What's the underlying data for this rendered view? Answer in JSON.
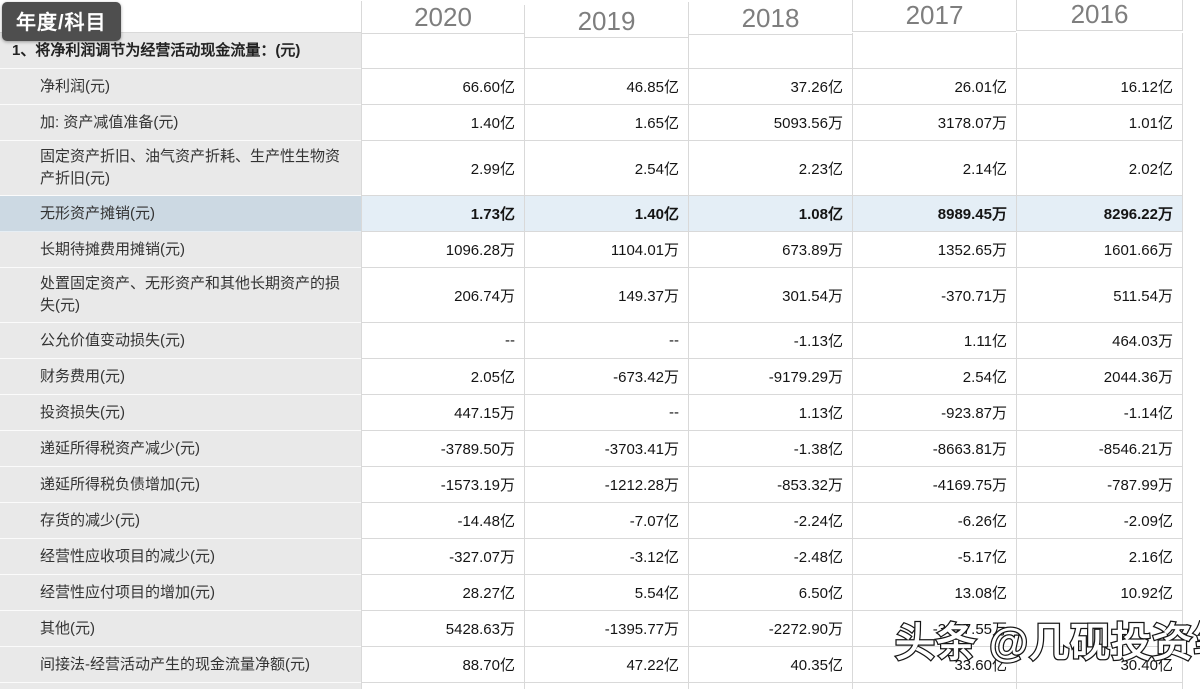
{
  "tooltip": {
    "label": "年度/科目"
  },
  "watermark": {
    "text": "头条 @几砚投资笔记"
  },
  "colors": {
    "label_column_bg": "#e9e9e9",
    "highlight_row_label_bg": "#ccd9e3",
    "highlight_row_value_bg": "#e4eef6",
    "grid_line": "#d9d9d9",
    "year_header_text": "#7e7e7e",
    "tooltip_bg": "#4e4e4e"
  },
  "table": {
    "year_columns": [
      "2020",
      "2019",
      "2018",
      "2017",
      "2016"
    ],
    "rows": [
      {
        "label": "1、将净利润调节为经营活动现金流量：(元)",
        "type": "section",
        "values": [
          "",
          "",
          "",
          "",
          ""
        ]
      },
      {
        "label": "净利润(元)",
        "type": "item",
        "values": [
          "66.60亿",
          "46.85亿",
          "37.26亿",
          "26.01亿",
          "16.12亿"
        ]
      },
      {
        "label": "加: 资产减值准备(元)",
        "type": "item",
        "values": [
          "1.40亿",
          "1.65亿",
          "5093.56万",
          "3178.07万",
          "1.01亿"
        ]
      },
      {
        "label": "固定资产折旧、油气资产折耗、生产性生物资产折旧(元)",
        "type": "item",
        "two_line": true,
        "values": [
          "2.99亿",
          "2.54亿",
          "2.23亿",
          "2.14亿",
          "2.02亿"
        ]
      },
      {
        "label": "无形资产摊销(元)",
        "type": "item",
        "highlighted": true,
        "values": [
          "1.73亿",
          "1.40亿",
          "1.08亿",
          "8989.45万",
          "8296.22万"
        ]
      },
      {
        "label": "长期待摊费用摊销(元)",
        "type": "item",
        "values": [
          "1096.28万",
          "1104.01万",
          "673.89万",
          "1352.65万",
          "1601.66万"
        ]
      },
      {
        "label": "处置固定资产、无形资产和其他长期资产的损失(元)",
        "type": "item",
        "two_line": true,
        "values": [
          "206.74万",
          "149.37万",
          "301.54万",
          "-370.71万",
          "511.54万"
        ]
      },
      {
        "label": "公允价值变动损失(元)",
        "type": "item",
        "values": [
          "--",
          "--",
          "-1.13亿",
          "1.11亿",
          "464.03万"
        ]
      },
      {
        "label": "财务费用(元)",
        "type": "item",
        "values": [
          "2.05亿",
          "-673.42万",
          "-9179.29万",
          "2.54亿",
          "2044.36万"
        ]
      },
      {
        "label": "投资损失(元)",
        "type": "item",
        "values": [
          "447.15万",
          "--",
          "1.13亿",
          "-923.87万",
          "-1.14亿"
        ]
      },
      {
        "label": "递延所得税资产减少(元)",
        "type": "item",
        "values": [
          "-3789.50万",
          "-3703.41万",
          "-1.38亿",
          "-8663.81万",
          "-8546.21万"
        ]
      },
      {
        "label": "递延所得税负债增加(元)",
        "type": "item",
        "values": [
          "-1573.19万",
          "-1212.28万",
          "-853.32万",
          "-4169.75万",
          "-787.99万"
        ]
      },
      {
        "label": "存货的减少(元)",
        "type": "item",
        "values": [
          "-14.48亿",
          "-7.07亿",
          "-2.24亿",
          "-6.26亿",
          "-2.09亿"
        ]
      },
      {
        "label": "经营性应收项目的减少(元)",
        "type": "item",
        "values": [
          "-327.07万",
          "-3.12亿",
          "-2.48亿",
          "-5.17亿",
          "2.16亿"
        ]
      },
      {
        "label": "经营性应付项目的增加(元)",
        "type": "item",
        "values": [
          "28.27亿",
          "5.54亿",
          "6.50亿",
          "13.08亿",
          "10.92亿"
        ]
      },
      {
        "label": "其他(元)",
        "type": "item",
        "values": [
          "5428.63万",
          "-1395.77万",
          "-2272.90万",
          "-3927.55万",
          "--"
        ]
      },
      {
        "label": "间接法-经营活动产生的现金流量净额(元)",
        "type": "item",
        "values": [
          "88.70亿",
          "47.22亿",
          "40.35亿",
          "33.60亿",
          "30.40亿"
        ]
      }
    ]
  }
}
